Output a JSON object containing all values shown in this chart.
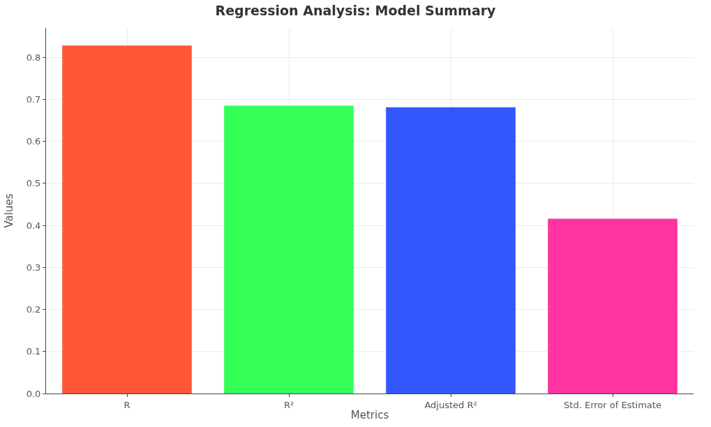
{
  "chart_data": {
    "type": "bar",
    "title": "Regression Analysis: Model Summary",
    "xlabel": "Metrics",
    "ylabel": "Values",
    "categories": [
      "R",
      "R²",
      "Adjusted R²",
      "Std. Error of Estimate"
    ],
    "values": [
      0.828,
      0.685,
      0.681,
      0.416
    ],
    "colors": [
      "#ff5733",
      "#33ff57",
      "#3357ff",
      "#ff33a1"
    ],
    "ylim": [
      0,
      0.87
    ],
    "yticks": [
      {
        "value": 0,
        "label": "0.0"
      },
      0.1,
      0.2,
      0.3,
      0.4,
      0.5,
      0.6,
      0.7,
      0.8
    ],
    "grid": true
  }
}
